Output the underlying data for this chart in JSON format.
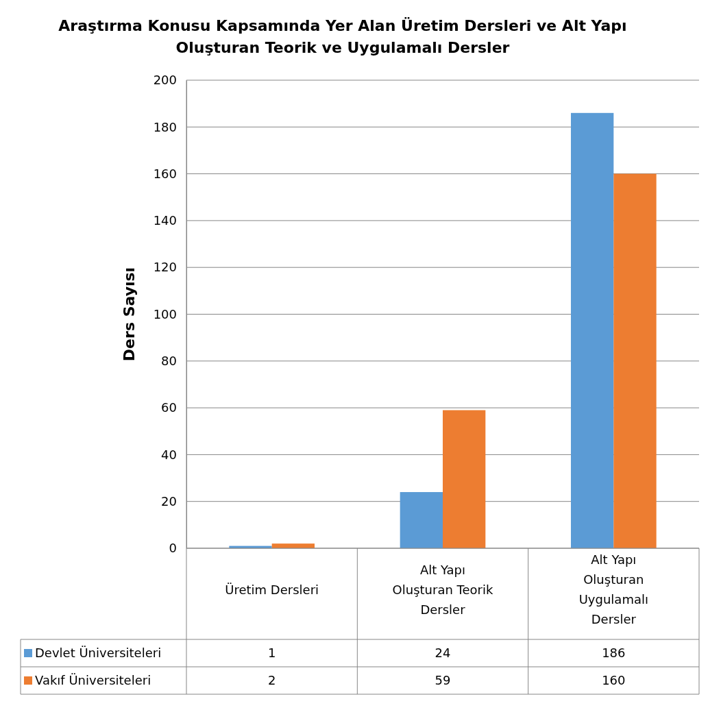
{
  "chart_data": {
    "type": "bar",
    "title": "Araştırma Konusu Kapsamında Yer Alan Üretim Dersleri ve Alt Yapı Oluşturan Teorik ve Uygulamalı Dersler",
    "ylabel": "Ders Sayısı",
    "categories": [
      "Üretim Dersleri",
      "Alt Yapı Oluşturan Teorik Dersler",
      "Alt Yapı Oluşturan Uygulamalı Dersler"
    ],
    "series": [
      {
        "name": "Devlet Üniversiteleri",
        "color": "#5b9bd5",
        "values": [
          1,
          24,
          186
        ]
      },
      {
        "name": "Vakıf Üniversiteleri",
        "color": "#ed7d31",
        "values": [
          2,
          59,
          160
        ]
      }
    ],
    "ylim": [
      0,
      200
    ],
    "yticks": [
      0,
      20,
      40,
      60,
      80,
      100,
      120,
      140,
      160,
      180,
      200
    ],
    "grid": "y",
    "legend": "bottom left",
    "data_labels": true
  }
}
